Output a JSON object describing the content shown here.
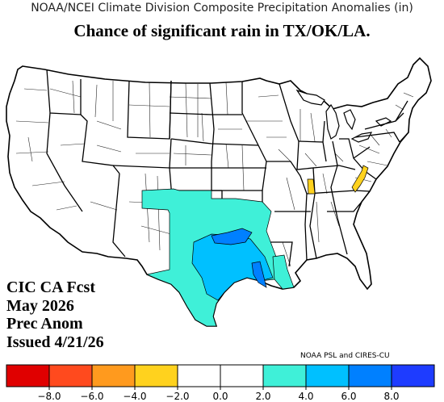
{
  "title": "NOAA/NCEI Climate Division Composite Precipitation Anomalies (in)",
  "subtitle": "Chance of significant rain in TX/OK/LA.",
  "forecast_label": [
    "CIC CA Fcst",
    "May 2026",
    "Prec Anom",
    "Issued 4/21/26"
  ],
  "credit": "NOAA PSL and CIRES-CU",
  "colors": {
    "bin_dark_red": "#e00000",
    "bin_red": "#ff4a1e",
    "bin_orange": "#ff9a1e",
    "bin_yellow": "#ffd21e",
    "bin_white": "#ffffff",
    "bin_cyan": "#3ff0d8",
    "bin_sky": "#00c0ff",
    "bin_blue": "#0080ff",
    "bin_dark_blue": "#1e3cff"
  },
  "legend": {
    "ticks": [
      "−8.0",
      "−6.0",
      "−4.0",
      "−2.0",
      "0.0",
      "2.0",
      "4.0",
      "6.0",
      "8.0"
    ]
  },
  "map_regions": [
    {
      "name": "west-texas-panhandle-cyan",
      "bin": "2.0 to 4.0"
    },
    {
      "name": "east-texas-sky",
      "bin": "4.0 to 6.0"
    },
    {
      "name": "oklahoma-blue",
      "bin": "6.0 to 8.0"
    },
    {
      "name": "louisiana-blue",
      "bin": "6.0 to 8.0"
    },
    {
      "name": "indiana-yellow",
      "bin": "-4.0 to -2.0"
    },
    {
      "name": "west-virginia-yellow",
      "bin": "-4.0 to -2.0"
    }
  ]
}
